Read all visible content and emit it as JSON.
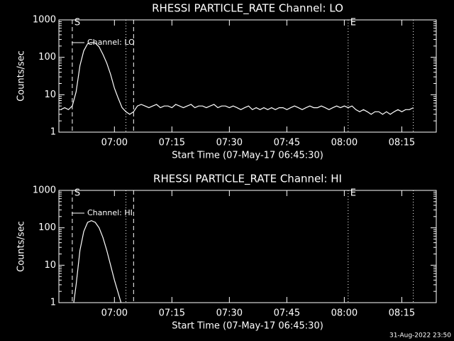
{
  "chart_data": [
    {
      "type": "line",
      "title": "RHESSI PARTICLE_RATE Channel: LO",
      "xlabel": "Start Time (07-May-17 06:45:30)",
      "ylabel": "Counts/sec",
      "log_y": true,
      "xlim": [
        "06:45:30",
        "08:24"
      ],
      "xticks": [
        "07:00",
        "07:15",
        "07:30",
        "07:45",
        "08:00",
        "08:15"
      ],
      "ylim": [
        1,
        1000
      ],
      "yticks": [
        1,
        10,
        100,
        1000
      ],
      "x": [
        "06:46",
        "06:47",
        "06:48",
        "06:49",
        "06:50",
        "06:51",
        "06:52",
        "06:53",
        "06:54",
        "06:55",
        "06:56",
        "06:57",
        "06:58",
        "06:59",
        "07:00",
        "07:01",
        "07:02",
        "07:03",
        "07:04",
        "07:05",
        "07:06",
        "07:07",
        "07:08",
        "07:09",
        "07:10",
        "07:11",
        "07:12",
        "07:13",
        "07:14",
        "07:15",
        "07:16",
        "07:17",
        "07:18",
        "07:19",
        "07:20",
        "07:21",
        "07:22",
        "07:23",
        "07:24",
        "07:25",
        "07:26",
        "07:27",
        "07:28",
        "07:29",
        "07:30",
        "07:31",
        "07:32",
        "07:33",
        "07:34",
        "07:35",
        "07:36",
        "07:37",
        "07:38",
        "07:39",
        "07:40",
        "07:41",
        "07:42",
        "07:43",
        "07:44",
        "07:45",
        "07:46",
        "07:47",
        "07:48",
        "07:49",
        "07:50",
        "07:51",
        "07:52",
        "07:53",
        "07:54",
        "07:55",
        "07:56",
        "07:57",
        "07:58",
        "07:59",
        "08:00",
        "08:01",
        "08:02",
        "08:03",
        "08:04",
        "08:05",
        "08:06",
        "08:07",
        "08:08",
        "08:09",
        "08:10",
        "08:11",
        "08:12",
        "08:13",
        "08:14",
        "08:15",
        "08:16",
        "08:17",
        "08:18"
      ],
      "series": [
        {
          "name": "Channel: LO",
          "color": "#ffffff",
          "values": [
            4,
            4.5,
            4,
            5,
            12,
            60,
            150,
            230,
            250,
            240,
            190,
            120,
            70,
            35,
            15,
            8,
            4.5,
            3.5,
            3,
            3.5,
            5,
            5.5,
            5,
            4.5,
            5,
            5.5,
            4.5,
            5,
            5,
            4.5,
            5.5,
            5,
            4.5,
            5,
            5.5,
            4.5,
            5,
            5,
            4.5,
            5,
            5.5,
            4.5,
            5,
            5,
            4.5,
            5,
            4.5,
            4,
            4.5,
            5,
            4,
            4.5,
            4,
            4.5,
            4,
            4.5,
            4,
            4.5,
            4.5,
            4,
            4.5,
            5,
            4.5,
            4,
            4.5,
            5,
            4.5,
            4.5,
            5,
            4.5,
            4,
            4.5,
            5,
            4.5,
            5,
            4.5,
            5,
            4,
            3.5,
            4,
            3.5,
            3,
            3.5,
            3.5,
            3,
            3.5,
            3,
            3.5,
            4,
            3.5,
            4,
            4,
            4.5
          ]
        }
      ],
      "markers": [
        {
          "x": "06:49",
          "style": "dashed"
        },
        {
          "x": "07:03",
          "style": "dotted"
        },
        {
          "x": "07:05",
          "style": "dashed"
        },
        {
          "x": "08:01",
          "style": "dotted"
        },
        {
          "x": "08:18",
          "style": "dotted"
        }
      ],
      "annotations": [
        {
          "x": "06:49",
          "text": "S"
        },
        {
          "x": "08:01",
          "text": "E"
        }
      ]
    },
    {
      "type": "line",
      "title": "RHESSI PARTICLE_RATE Channel: HI",
      "xlabel": "Start Time (07-May-17 06:45:30)",
      "ylabel": "Counts/sec",
      "log_y": true,
      "xlim": [
        "06:45:30",
        "08:24"
      ],
      "xticks": [
        "07:00",
        "07:15",
        "07:30",
        "07:45",
        "08:00",
        "08:15"
      ],
      "ylim": [
        1,
        1000
      ],
      "yticks": [
        1,
        10,
        100,
        1000
      ],
      "x": [
        "06:49",
        "06:50",
        "06:51",
        "06:52",
        "06:53",
        "06:54",
        "06:55",
        "06:56",
        "06:57",
        "06:58",
        "06:59",
        "07:00",
        "07:01",
        "07:02"
      ],
      "series": [
        {
          "name": "Channel: HI",
          "color": "#ffffff",
          "values": [
            0.5,
            3,
            25,
            80,
            140,
            155,
            140,
            100,
            55,
            25,
            10,
            4,
            1.8,
            0.8
          ]
        }
      ],
      "markers": [
        {
          "x": "06:49",
          "style": "dashed"
        },
        {
          "x": "07:03",
          "style": "dotted"
        },
        {
          "x": "07:05",
          "style": "dashed"
        },
        {
          "x": "08:01",
          "style": "dotted"
        },
        {
          "x": "08:18",
          "style": "dotted"
        }
      ],
      "annotations": [
        {
          "x": "06:49",
          "text": "S"
        },
        {
          "x": "08:01",
          "text": "E"
        }
      ]
    }
  ],
  "footer": "31-Aug-2022 23:50"
}
